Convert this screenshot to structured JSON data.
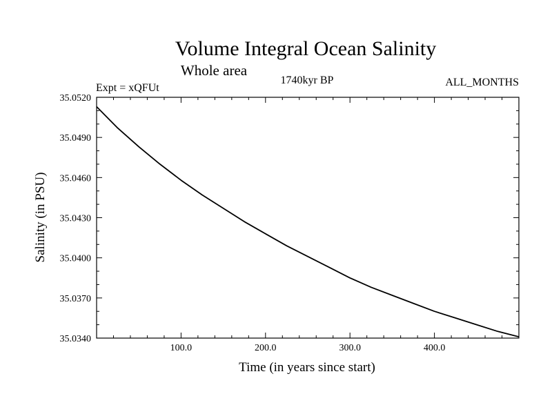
{
  "chart_data": {
    "type": "line",
    "title": "Volume Integral Ocean Salinity",
    "subtitle": "Whole area",
    "left_note": "Expt = xQFUt",
    "center_note": "1740kyr BP",
    "right_note": "ALL_MONTHS",
    "xlabel": "Time (in years since start)",
    "ylabel": "Salinity (in PSU)",
    "xlim": [
      0,
      500
    ],
    "ylim": [
      35.034,
      35.052
    ],
    "xticks": [
      100,
      200,
      300,
      400
    ],
    "xtick_labels": [
      "100.0",
      "200.0",
      "300.0",
      "400.0"
    ],
    "yticks": [
      35.034,
      35.037,
      35.04,
      35.043,
      35.046,
      35.049,
      35.052
    ],
    "ytick_labels": [
      "35.0340",
      "35.0370",
      "35.0400",
      "35.0430",
      "35.0460",
      "35.0490",
      "35.0520"
    ],
    "grid": false,
    "series": [
      {
        "name": "Salinity",
        "color": "#000000",
        "x": [
          0,
          25,
          50,
          75,
          100,
          125,
          150,
          175,
          200,
          225,
          250,
          275,
          300,
          325,
          350,
          375,
          400,
          425,
          450,
          475,
          500
        ],
        "values": [
          35.0513,
          35.0497,
          35.0483,
          35.047,
          35.0458,
          35.0447,
          35.0437,
          35.0427,
          35.0418,
          35.0409,
          35.0401,
          35.0393,
          35.0385,
          35.0378,
          35.0372,
          35.0366,
          35.036,
          35.0355,
          35.035,
          35.0345,
          35.0341
        ]
      }
    ]
  }
}
